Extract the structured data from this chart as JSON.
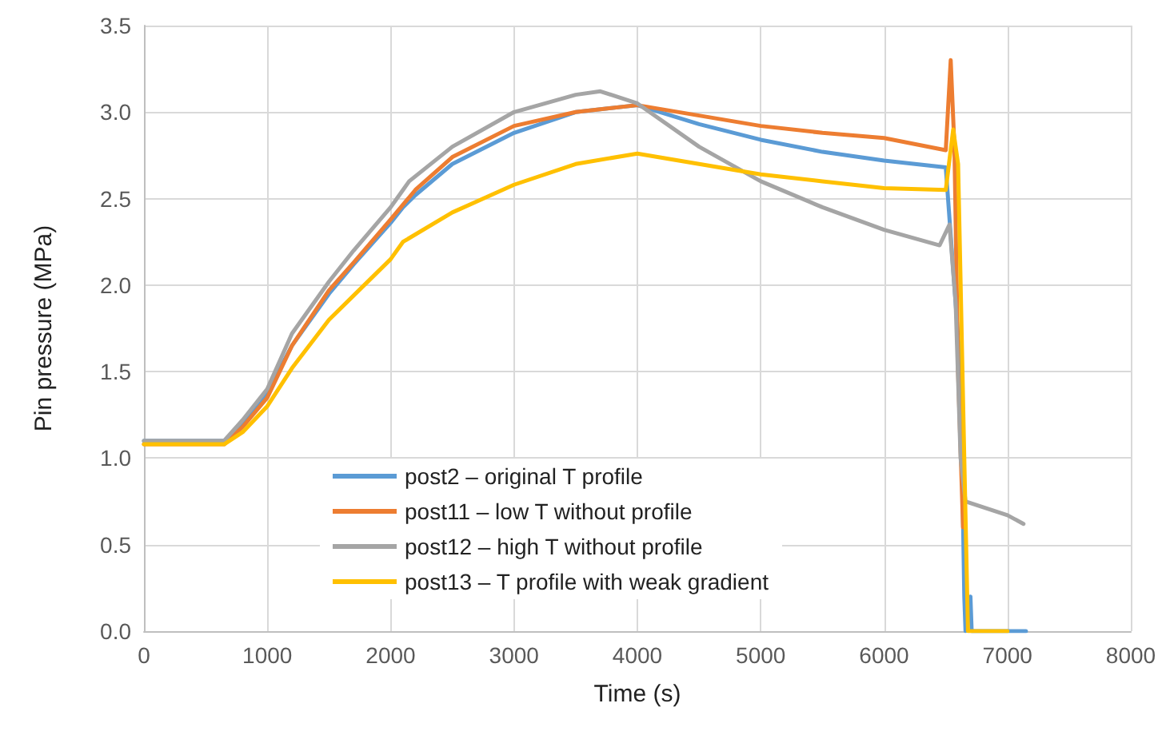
{
  "chart_data": {
    "type": "line",
    "xlabel": "Time (s)",
    "ylabel": "Pin pressure (MPa)",
    "xlim": [
      0,
      8000
    ],
    "xticks": [
      0,
      1000,
      2000,
      3000,
      4000,
      5000,
      6000,
      7000,
      8000
    ],
    "ylim": [
      0,
      3.5
    ],
    "yticks": [
      {
        "value": 0,
        "label": "0.0"
      },
      0.5,
      {
        "value": 1,
        "label": "1.0"
      },
      1.5,
      {
        "value": 2,
        "label": "2.0"
      },
      2.5,
      {
        "value": 3,
        "label": "3.0"
      },
      3.5
    ],
    "grid": true,
    "legend": "bottom",
    "marker": "none",
    "line_style": "solid",
    "series": [
      {
        "name": "post2 – original T profile",
        "color": "#5b9bd5",
        "x": [
          0,
          650,
          800,
          950,
          1000,
          1200,
          1500,
          1700,
          2000,
          2100,
          2200,
          2500,
          3000,
          3500,
          4000,
          4500,
          5000,
          5500,
          6000,
          6500,
          6620,
          6650,
          6660,
          6700,
          6710,
          7150
        ],
        "values": [
          1.1,
          1.1,
          1.2,
          1.32,
          1.38,
          1.65,
          1.95,
          2.12,
          2.36,
          2.45,
          2.52,
          2.7,
          2.88,
          3.0,
          3.04,
          2.93,
          2.84,
          2.77,
          2.72,
          2.68,
          1.5,
          0.2,
          0.0,
          0.2,
          0.0,
          0.0
        ]
      },
      {
        "name": "post11 – low T without profile",
        "color": "#ed7d31",
        "x": [
          0,
          650,
          800,
          1000,
          1200,
          1500,
          1700,
          2000,
          2200,
          2500,
          3000,
          3500,
          4000,
          4500,
          5000,
          5500,
          6000,
          6500,
          6540,
          6570,
          6600,
          6640
        ],
        "values": [
          1.08,
          1.08,
          1.18,
          1.35,
          1.65,
          1.97,
          2.13,
          2.38,
          2.55,
          2.74,
          2.92,
          3.0,
          3.04,
          2.98,
          2.92,
          2.88,
          2.85,
          2.78,
          3.3,
          2.8,
          1.5,
          0.6
        ]
      },
      {
        "name": "post12 – high T without profile",
        "color": "#a5a5a5",
        "x": [
          0,
          650,
          800,
          1000,
          1200,
          1500,
          1700,
          2000,
          2100,
          2150,
          2500,
          3000,
          3500,
          3700,
          4000,
          4500,
          5000,
          5500,
          6000,
          6450,
          6530,
          6580,
          6620,
          6660,
          7000,
          7130
        ],
        "values": [
          1.1,
          1.1,
          1.22,
          1.4,
          1.72,
          2.02,
          2.2,
          2.45,
          2.55,
          2.6,
          2.8,
          3.0,
          3.1,
          3.12,
          3.05,
          2.8,
          2.6,
          2.45,
          2.32,
          2.23,
          2.35,
          1.9,
          1.0,
          0.75,
          0.67,
          0.62
        ]
      },
      {
        "name": "post13 – T profile with weak gradient",
        "color": "#ffc000",
        "x": [
          0,
          650,
          800,
          1000,
          1200,
          1500,
          1700,
          2000,
          2100,
          2500,
          3000,
          3500,
          4000,
          4500,
          5000,
          5500,
          6000,
          6500,
          6560,
          6600,
          6650,
          6680,
          7000
        ],
        "values": [
          1.08,
          1.08,
          1.15,
          1.3,
          1.52,
          1.8,
          1.94,
          2.15,
          2.25,
          2.42,
          2.58,
          2.7,
          2.76,
          2.7,
          2.64,
          2.6,
          2.56,
          2.55,
          2.9,
          2.7,
          1.0,
          0.0,
          0.0
        ]
      }
    ]
  }
}
